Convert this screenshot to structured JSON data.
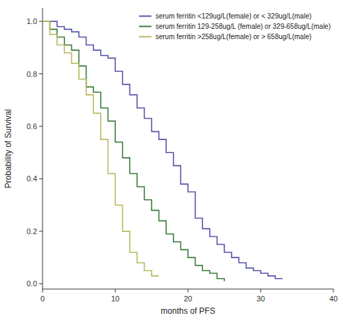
{
  "chart_data": {
    "type": "step",
    "xlabel": "months of PFS",
    "ylabel": "Probability of Survival",
    "xlim": [
      0,
      40
    ],
    "ylim": [
      -0.02,
      1.05
    ],
    "xticks": [
      0,
      10,
      20,
      30,
      40
    ],
    "yticks": [
      {
        "value": 0.0,
        "label": "0.0"
      },
      0.2,
      0.4,
      0.6,
      0.8,
      {
        "value": 1.0,
        "label": "1.0"
      }
    ],
    "grid": false,
    "legend": "upper right",
    "series": [
      {
        "name": "serum ferritin <129ug/L(female) or < 329ug/L(male)",
        "color": "#5555aa",
        "x": [
          0,
          1,
          2,
          3,
          4,
          5,
          6,
          7,
          8,
          9,
          10,
          11,
          12,
          13,
          14,
          15,
          16,
          17,
          18,
          19,
          20,
          21,
          22,
          23,
          24,
          25,
          26,
          27,
          28,
          29,
          30,
          31,
          32,
          33
        ],
        "values": [
          1.0,
          1.0,
          0.98,
          0.97,
          0.96,
          0.94,
          0.91,
          0.89,
          0.87,
          0.86,
          0.81,
          0.76,
          0.72,
          0.67,
          0.63,
          0.58,
          0.55,
          0.5,
          0.45,
          0.38,
          0.35,
          0.25,
          0.21,
          0.18,
          0.15,
          0.12,
          0.1,
          0.08,
          0.06,
          0.05,
          0.04,
          0.03,
          0.02,
          0.02
        ]
      },
      {
        "name": "serum ferritin 129-258ug/L (female) or 329-658ug/L(male)",
        "color": "#3a7a3a",
        "x": [
          0,
          1,
          2,
          3,
          4,
          5,
          6,
          7,
          8,
          9,
          10,
          11,
          12,
          13,
          14,
          15,
          16,
          17,
          18,
          19,
          20,
          21,
          22,
          23,
          24,
          25
        ],
        "values": [
          1.0,
          0.97,
          0.94,
          0.91,
          0.89,
          0.83,
          0.75,
          0.73,
          0.67,
          0.62,
          0.54,
          0.48,
          0.42,
          0.37,
          0.32,
          0.28,
          0.24,
          0.19,
          0.16,
          0.13,
          0.1,
          0.07,
          0.05,
          0.04,
          0.02,
          0.01
        ]
      },
      {
        "name": "serum ferritin >258ug/L(female)  or > 658ug/L(male)",
        "color": "#b8b860",
        "x": [
          0,
          1,
          2,
          3,
          4,
          5,
          6,
          7,
          8,
          9,
          10,
          11,
          12,
          13,
          14,
          15,
          16
        ],
        "values": [
          1.0,
          0.95,
          0.91,
          0.88,
          0.84,
          0.78,
          0.72,
          0.65,
          0.55,
          0.42,
          0.3,
          0.2,
          0.12,
          0.08,
          0.05,
          0.03,
          0.03
        ]
      }
    ]
  }
}
